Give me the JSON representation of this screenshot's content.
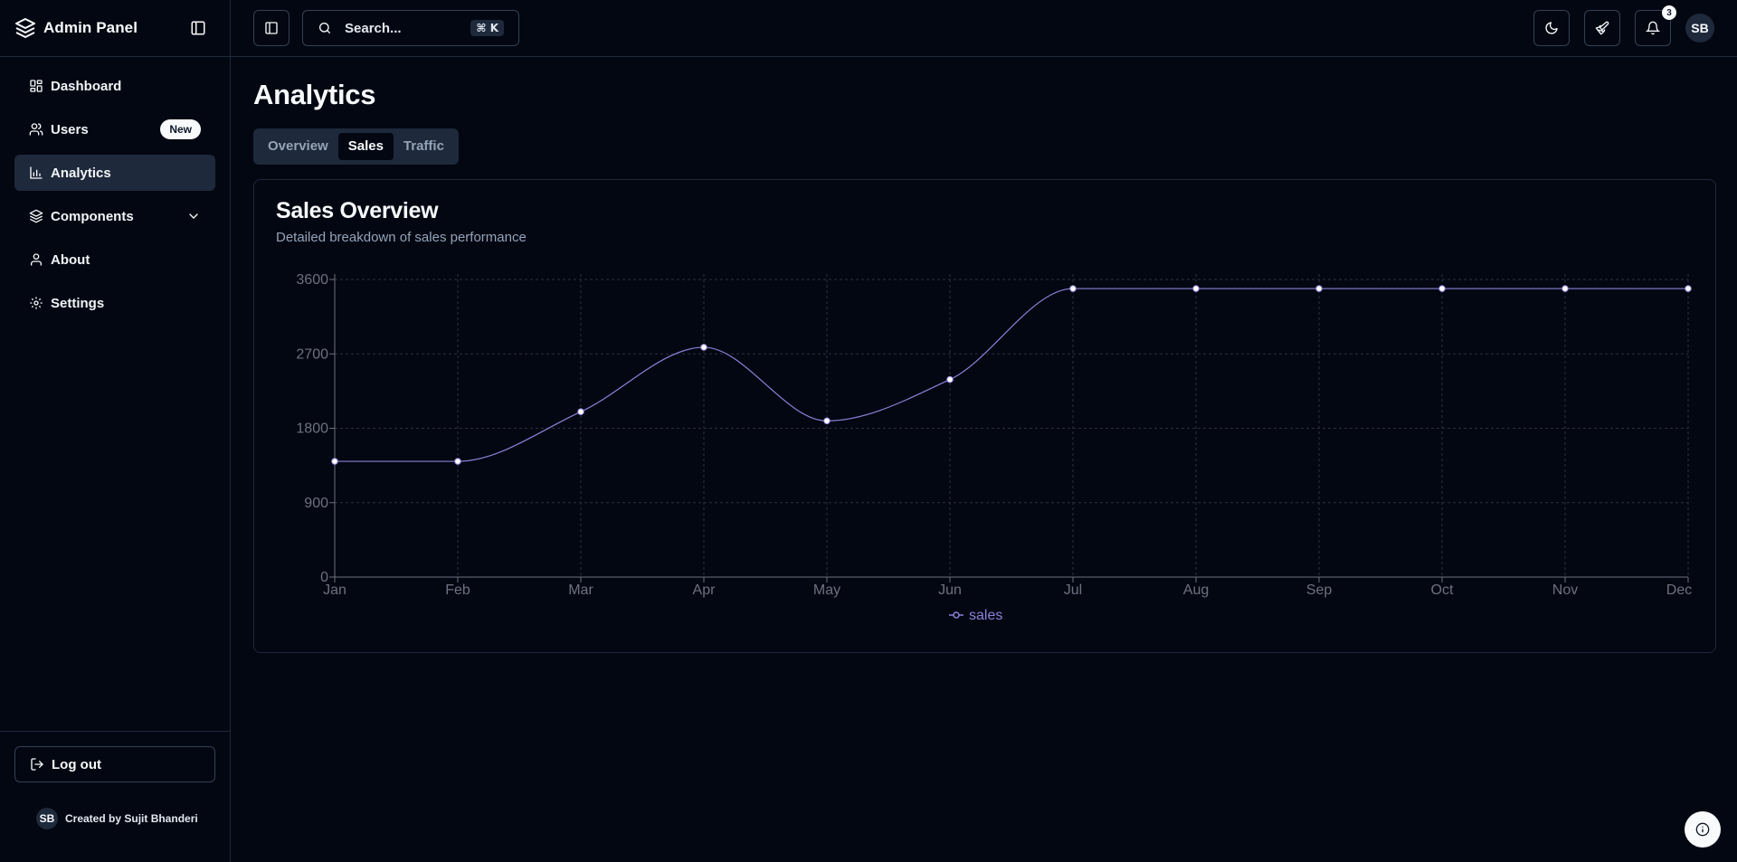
{
  "sidebar": {
    "brand": "Admin Panel",
    "items": [
      {
        "label": "Dashboard"
      },
      {
        "label": "Users",
        "badge": "New"
      },
      {
        "label": "Analytics"
      },
      {
        "label": "Components"
      },
      {
        "label": "About"
      },
      {
        "label": "Settings"
      }
    ],
    "logout_label": "Log out",
    "credit_initials": "SB",
    "credit_text": "Created by Sujit Bhanderi"
  },
  "topbar": {
    "search_label": "Search...",
    "shortcut": "⌘ K",
    "notification_count": "3",
    "avatar_initials": "SB"
  },
  "main": {
    "page_title": "Analytics",
    "tabs": [
      {
        "label": "Overview"
      },
      {
        "label": "Sales"
      },
      {
        "label": "Traffic"
      }
    ],
    "active_tab": "Sales"
  },
  "card": {
    "title": "Sales Overview",
    "subtitle": "Detailed breakdown of sales performance"
  },
  "chart_data": {
    "type": "line",
    "title": "Sales Overview",
    "categories": [
      "Jan",
      "Feb",
      "Mar",
      "Apr",
      "May",
      "Jun",
      "Jul",
      "Aug",
      "Sep",
      "Oct",
      "Nov",
      "Dec"
    ],
    "series": [
      {
        "name": "sales",
        "values": [
          1400,
          1400,
          2000,
          2780,
          1890,
          2390,
          3490,
          3490,
          3490,
          3490,
          3490,
          3490
        ]
      }
    ],
    "yticks": [
      0,
      900,
      1800,
      2700,
      3600
    ],
    "ylim": [
      0,
      3600
    ],
    "grid": true,
    "legend": "bottom-center",
    "xlabel": "",
    "ylabel": ""
  },
  "colors": {
    "background": "#030712",
    "border": "#1e293b",
    "line": "#8b82d9",
    "muted_text": "#94a3b8"
  }
}
